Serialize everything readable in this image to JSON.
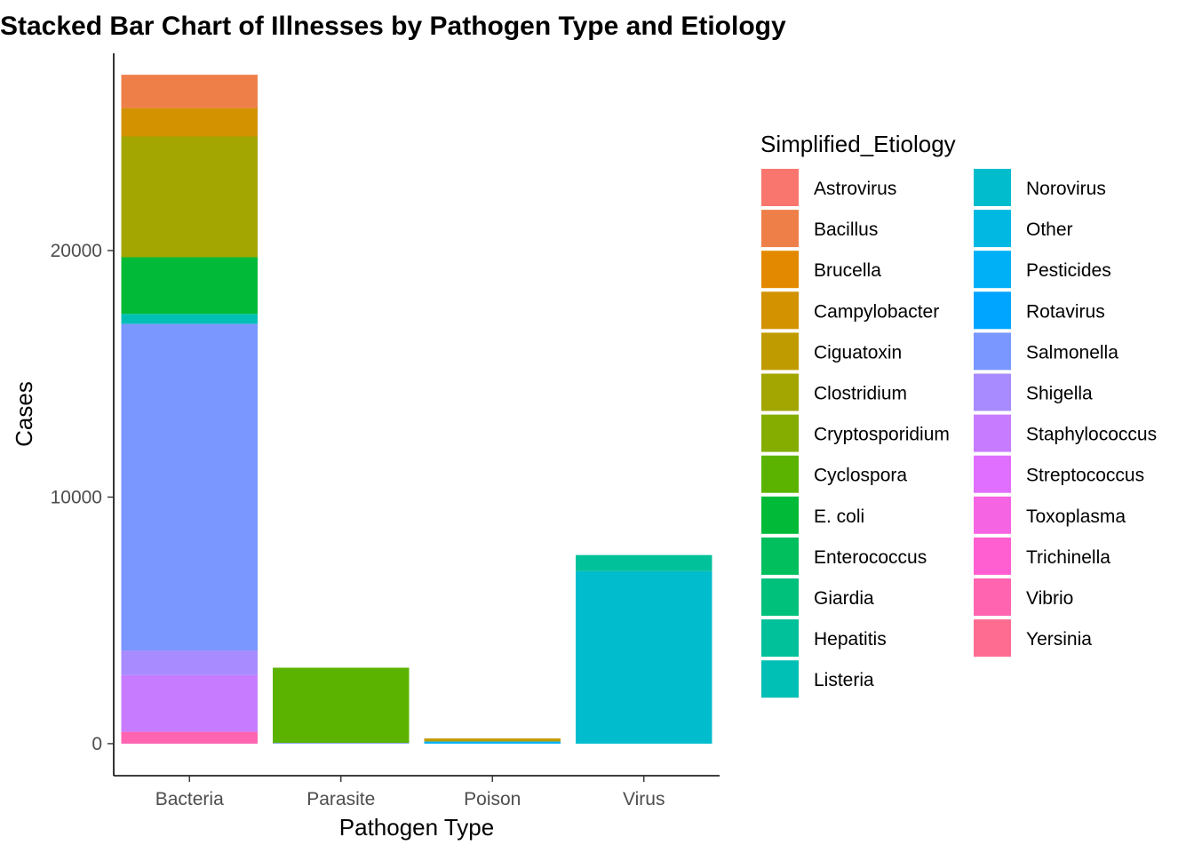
{
  "chart_data": {
    "type": "bar",
    "stacked": true,
    "title": "Stacked Bar Chart of Illnesses by Pathogen Type and Etiology",
    "xlabel": "Pathogen Type",
    "ylabel": "Cases",
    "categories": [
      "Bacteria",
      "Parasite",
      "Poison",
      "Virus"
    ],
    "ylim": [
      -1300,
      28000
    ],
    "yticks": [
      0,
      10000,
      20000
    ],
    "ytick_labels": [
      "0",
      "10000",
      "20000"
    ],
    "grid": false,
    "legend_title": "Simplified_Etiology",
    "legend_placement": "right",
    "legend_columns": 2,
    "series": [
      {
        "name": "Astrovirus",
        "color": "#F8766D",
        "values": [
          0,
          0,
          0,
          0
        ]
      },
      {
        "name": "Bacillus",
        "color": "#EF7F49",
        "values": [
          1350,
          0,
          0,
          0
        ]
      },
      {
        "name": "Brucella",
        "color": "#E38900",
        "values": [
          0,
          0,
          0,
          0
        ]
      },
      {
        "name": "Campylobacter",
        "color": "#D39200",
        "values": [
          1150,
          0,
          0,
          0
        ]
      },
      {
        "name": "Ciguatoxin",
        "color": "#C09B00",
        "values": [
          0,
          0,
          120,
          0
        ]
      },
      {
        "name": "Clostridium",
        "color": "#A3A500",
        "values": [
          4900,
          0,
          0,
          0
        ]
      },
      {
        "name": "Cryptosporidium",
        "color": "#85AD00",
        "values": [
          0,
          0,
          0,
          0
        ]
      },
      {
        "name": "Cyclospora",
        "color": "#5BB300",
        "values": [
          0,
          3050,
          0,
          0
        ]
      },
      {
        "name": "E. coli",
        "color": "#00BA38",
        "values": [
          2300,
          0,
          0,
          0
        ]
      },
      {
        "name": "Enterococcus",
        "color": "#00BF5C",
        "values": [
          0,
          0,
          0,
          0
        ]
      },
      {
        "name": "Giardia",
        "color": "#00C17C",
        "values": [
          0,
          0,
          0,
          0
        ]
      },
      {
        "name": "Hepatitis",
        "color": "#00C19A",
        "values": [
          0,
          0,
          0,
          650
        ]
      },
      {
        "name": "Listeria",
        "color": "#00BFB4",
        "values": [
          400,
          0,
          0,
          0
        ]
      },
      {
        "name": "Norovirus",
        "color": "#00BCCC",
        "values": [
          0,
          0,
          0,
          7000
        ]
      },
      {
        "name": "Other",
        "color": "#00B8E1",
        "values": [
          0,
          0,
          20,
          0
        ]
      },
      {
        "name": "Pesticides",
        "color": "#00B0F6",
        "values": [
          0,
          0,
          70,
          0
        ]
      },
      {
        "name": "Rotavirus",
        "color": "#00A5FF",
        "values": [
          0,
          0,
          0,
          0
        ]
      },
      {
        "name": "Salmonella",
        "color": "#7997FF",
        "values": [
          13250,
          30,
          0,
          0
        ]
      },
      {
        "name": "Shigella",
        "color": "#A78BFF",
        "values": [
          1000,
          0,
          0,
          0
        ]
      },
      {
        "name": "Staphylococcus",
        "color": "#C77CFF",
        "values": [
          2300,
          0,
          0,
          0
        ]
      },
      {
        "name": "Streptococcus",
        "color": "#E06EFF",
        "values": [
          0,
          0,
          0,
          0
        ]
      },
      {
        "name": "Toxoplasma",
        "color": "#F564E3",
        "values": [
          0,
          0,
          0,
          0
        ]
      },
      {
        "name": "Trichinella",
        "color": "#FF5FD0",
        "values": [
          0,
          0,
          0,
          0
        ]
      },
      {
        "name": "Vibrio",
        "color": "#FF64B0",
        "values": [
          480,
          0,
          0,
          0
        ]
      },
      {
        "name": "Yersinia",
        "color": "#FF6C91",
        "values": [
          0,
          0,
          0,
          0
        ]
      }
    ]
  }
}
